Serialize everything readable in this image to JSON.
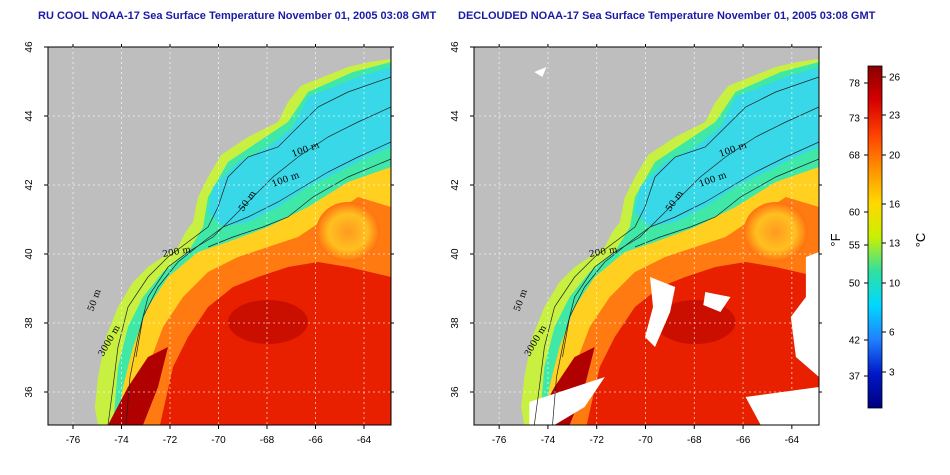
{
  "panels": [
    {
      "id": "left",
      "title": "RU COOL NOAA-17 Sea Surface Temperature November 01, 2005 03:08 GMT",
      "contour_labels": [
        "100 m",
        "100 m",
        "50 m",
        "200 m",
        "50 m",
        "3000 m"
      ]
    },
    {
      "id": "right",
      "title": "DECLOUDED NOAA-17 Sea Surface Temperature November 01, 2005 03:08 GMT",
      "contour_labels": [
        "100 m",
        "100 m",
        "50 m",
        "200 m",
        "50 m",
        "3000 m"
      ]
    }
  ],
  "axes": {
    "lon_ticks": [
      "-76",
      "-74",
      "-72",
      "-70",
      "-68",
      "-66",
      "-64"
    ],
    "lat_ticks": [
      "46",
      "44",
      "42",
      "40",
      "38",
      "36"
    ]
  },
  "colorbar": {
    "f_label": "°F",
    "c_label": "°C",
    "f_ticks": [
      "78",
      "73",
      "68",
      "60",
      "55",
      "50",
      "42",
      "37"
    ],
    "c_ticks": [
      "26",
      "23",
      "20",
      "16",
      "13",
      "10",
      "6",
      "3"
    ],
    "colors": [
      "#8b0000",
      "#d40000",
      "#ff4000",
      "#ff9000",
      "#ffd800",
      "#c8f000",
      "#30e0a0",
      "#00d8ff",
      "#2080ff",
      "#0018c8",
      "#000080"
    ]
  },
  "map_colors": {
    "land": "#bebebe",
    "cloud": "#ffffff",
    "cold_shelf": "#38d8e8",
    "shelf": "#40e8a8",
    "nearshore": "#c8f040",
    "slope": "#ffd020",
    "warm": "#ff7a10",
    "gulfstream": "#e82000",
    "hot": "#b00000"
  }
}
